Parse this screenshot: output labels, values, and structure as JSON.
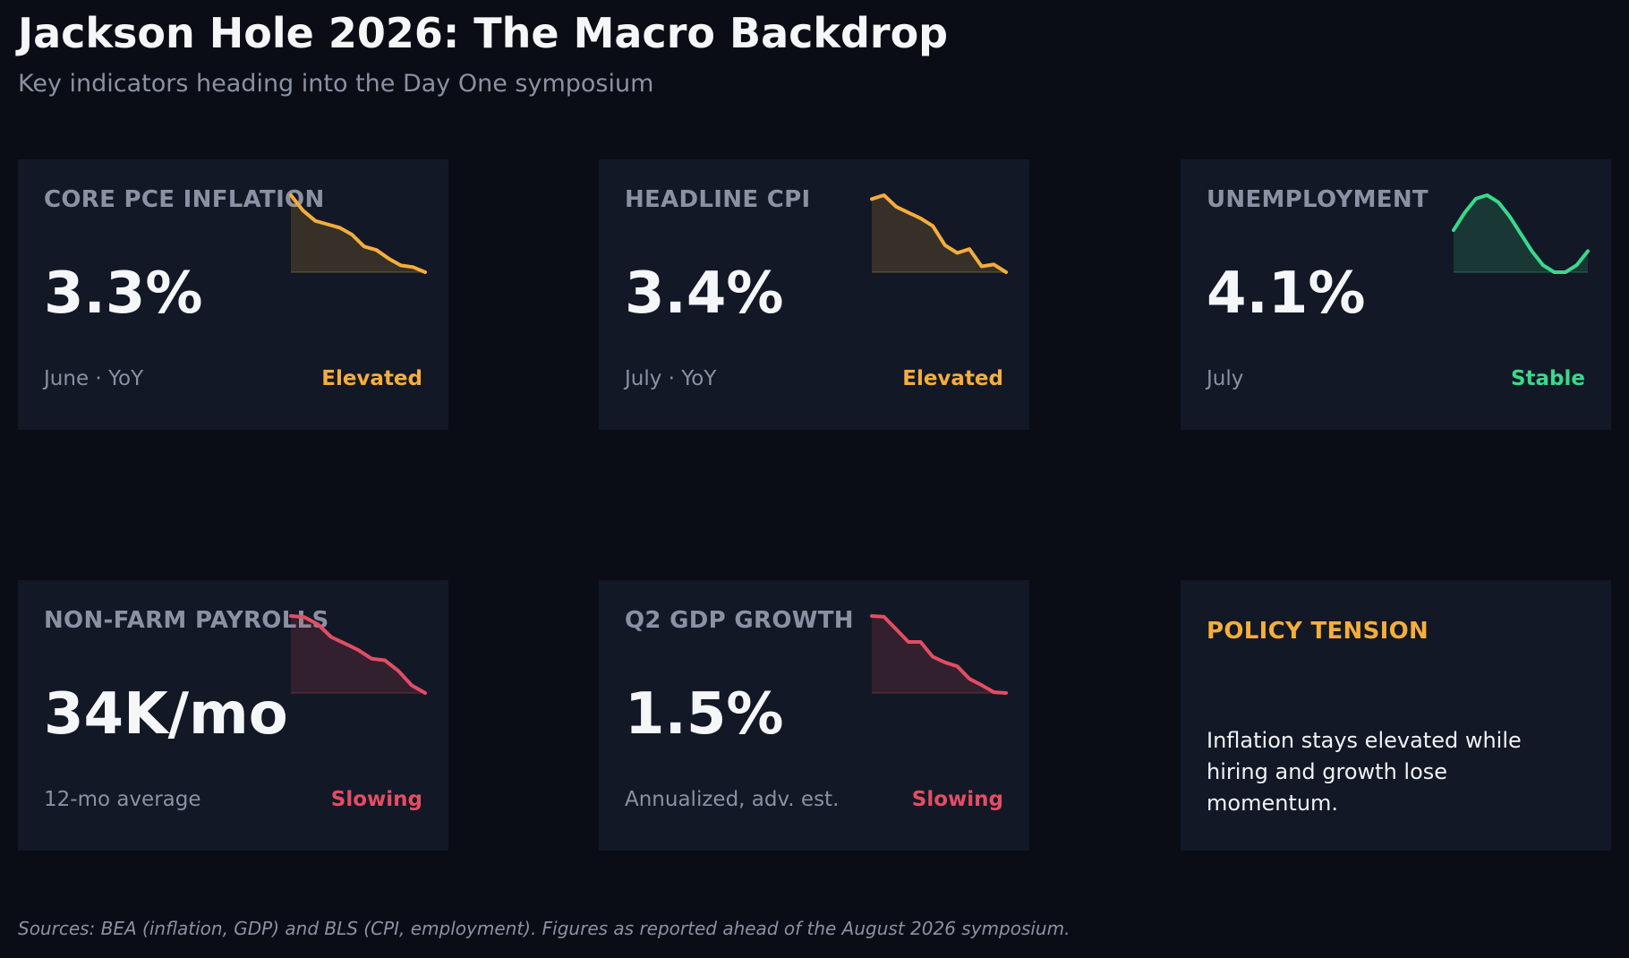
{
  "header": {
    "title": "Jackson Hole 2026: The Macro Backdrop",
    "subtitle": "Key indicators heading into the Day One symposium"
  },
  "colors": {
    "elevated": "#f5ad3c",
    "stable": "#3ad98a",
    "slowing": "#e34d63"
  },
  "cards": [
    {
      "label": "CORE PCE INFLATION",
      "value": "3.3%",
      "period": "June · YoY",
      "status": "Elevated",
      "status_color": "#f5ad3c",
      "sparkline": [
        3.92,
        3.83,
        3.77,
        3.75,
        3.73,
        3.69,
        3.62,
        3.6,
        3.55,
        3.51,
        3.5,
        3.47
      ]
    },
    {
      "label": "HEADLINE CPI",
      "value": "3.4%",
      "period": "July · YoY",
      "status": "Elevated",
      "status_color": "#f5ad3c",
      "sparkline": [
        3.97,
        3.99,
        3.93,
        3.9,
        3.87,
        3.83,
        3.73,
        3.69,
        3.71,
        3.62,
        3.63,
        3.59
      ]
    },
    {
      "label": "UNEMPLOYMENT",
      "value": "4.1%",
      "period": "July",
      "status": "Stable",
      "status_color": "#3ad98a",
      "sparkline": [
        4.05,
        4.1,
        4.14,
        4.15,
        4.13,
        4.09,
        4.04,
        3.99,
        3.95,
        3.93,
        3.93,
        3.95,
        3.99
      ]
    },
    {
      "label": "NON-FARM PAYROLLS",
      "value": "34K/mo",
      "period": "12-mo average",
      "status": "Slowing",
      "status_color": "#e34d63",
      "sparkline": [
        172,
        170,
        158,
        136,
        125,
        114,
        99,
        96,
        78,
        53,
        40
      ]
    },
    {
      "label": "Q2 GDP GROWTH",
      "value": "1.5%",
      "period": "Annualized, adv. est.",
      "status": "Slowing",
      "status_color": "#e34d63",
      "sparkline": [
        2.79,
        2.78,
        2.62,
        2.46,
        2.46,
        2.27,
        2.2,
        2.15,
        1.99,
        1.91,
        1.82,
        1.81
      ]
    }
  ],
  "note": {
    "heading": "POLICY TENSION",
    "heading_color": "#f5ad3c",
    "body": "Inflation stays elevated while hiring and growth lose momentum."
  },
  "footer": {
    "sources": "Sources: BEA (inflation, GDP) and BLS (CPI, employment). Figures as reported ahead of the August 2026 symposium."
  },
  "chart_data": [
    {
      "type": "area",
      "title": "CORE PCE INFLATION",
      "values": [
        3.92,
        3.83,
        3.77,
        3.75,
        3.73,
        3.69,
        3.62,
        3.6,
        3.55,
        3.51,
        3.5,
        3.47
      ]
    },
    {
      "type": "area",
      "title": "HEADLINE CPI",
      "values": [
        3.97,
        3.99,
        3.93,
        3.9,
        3.87,
        3.83,
        3.73,
        3.69,
        3.71,
        3.62,
        3.63,
        3.59
      ]
    },
    {
      "type": "area",
      "title": "UNEMPLOYMENT",
      "values": [
        4.05,
        4.1,
        4.14,
        4.15,
        4.13,
        4.09,
        4.04,
        3.99,
        3.95,
        3.93,
        3.93,
        3.95,
        3.99
      ]
    },
    {
      "type": "area",
      "title": "NON-FARM PAYROLLS",
      "values": [
        172,
        170,
        158,
        136,
        125,
        114,
        99,
        96,
        78,
        53,
        40
      ]
    },
    {
      "type": "area",
      "title": "Q2 GDP GROWTH",
      "values": [
        2.79,
        2.78,
        2.62,
        2.46,
        2.46,
        2.27,
        2.2,
        2.15,
        1.99,
        1.91,
        1.82,
        1.81
      ]
    }
  ]
}
